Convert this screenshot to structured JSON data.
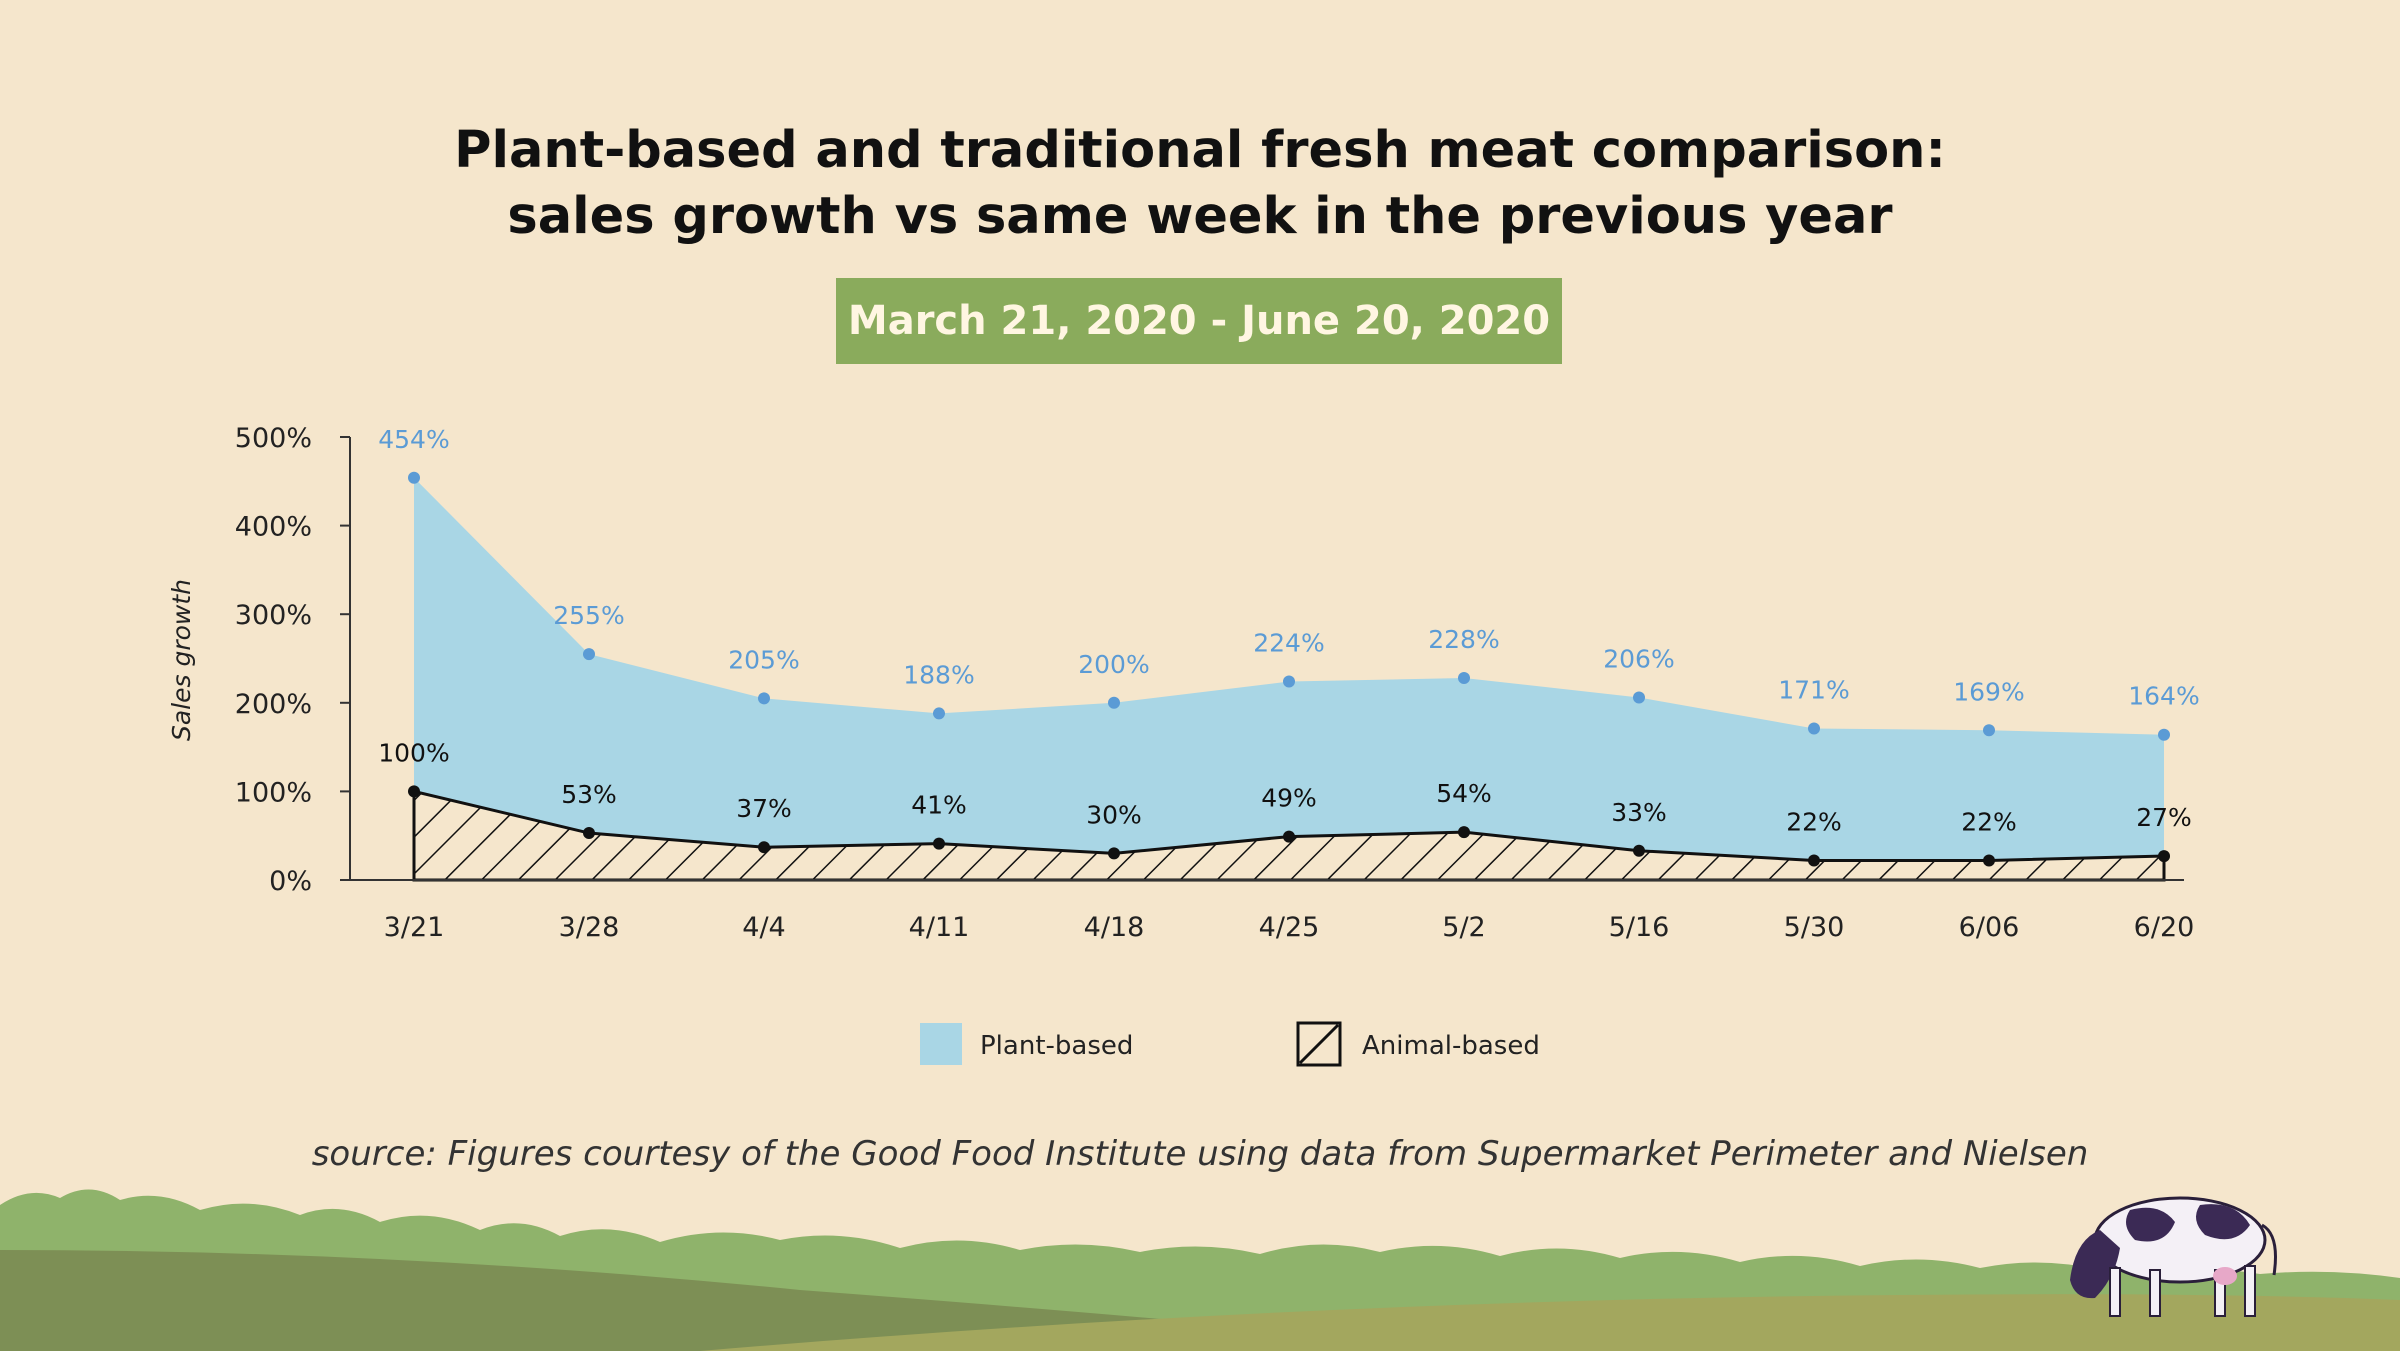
{
  "title_line1": "Plant-based and traditional fresh meat comparison:",
  "title_line2": "sales growth vs same week in the previous year",
  "date_range": "March 21, 2020 - June 20, 2020",
  "source": "source: Figures courtesy of the Good Food Institute using data from Supermarket Perimeter and Nielsen",
  "colors": {
    "plant_fill": "#a9d6e5",
    "plant_point": "#5b9bd5",
    "plant_label": "#5b9bd5",
    "animal_line": "#111111",
    "badge": "#8aab5c",
    "background": "#f5e6cc"
  },
  "chart_data": {
    "type": "area",
    "title": "Plant-based and traditional fresh meat comparison: sales growth vs same week in the previous year",
    "xlabel": "",
    "ylabel": "Sales growth",
    "ylim": [
      0,
      500
    ],
    "yticks": [
      0,
      100,
      200,
      300,
      400,
      500
    ],
    "ytick_labels": [
      "0%",
      "100%",
      "200%",
      "300%",
      "400%",
      "500%"
    ],
    "categories": [
      "3/21",
      "3/28",
      "4/4",
      "4/11",
      "4/18",
      "4/25",
      "5/2",
      "5/16",
      "5/30",
      "6/06",
      "6/20"
    ],
    "series": [
      {
        "name": "Plant-based",
        "values": [
          454,
          255,
          205,
          188,
          200,
          224,
          228,
          206,
          171,
          169,
          164
        ],
        "labels": [
          "454%",
          "255%",
          "205%",
          "188%",
          "200%",
          "224%",
          "228%",
          "206%",
          "171%",
          "169%",
          "164%"
        ]
      },
      {
        "name": "Animal-based",
        "values": [
          100,
          53,
          37,
          41,
          30,
          49,
          54,
          33,
          22,
          22,
          27
        ],
        "labels": [
          "100%",
          "53%",
          "37%",
          "41%",
          "30%",
          "49%",
          "54%",
          "33%",
          "22%",
          "22%",
          "27%"
        ]
      }
    ],
    "legend": [
      "Plant-based",
      "Animal-based"
    ],
    "legend_position": "bottom-center",
    "grid": false
  }
}
